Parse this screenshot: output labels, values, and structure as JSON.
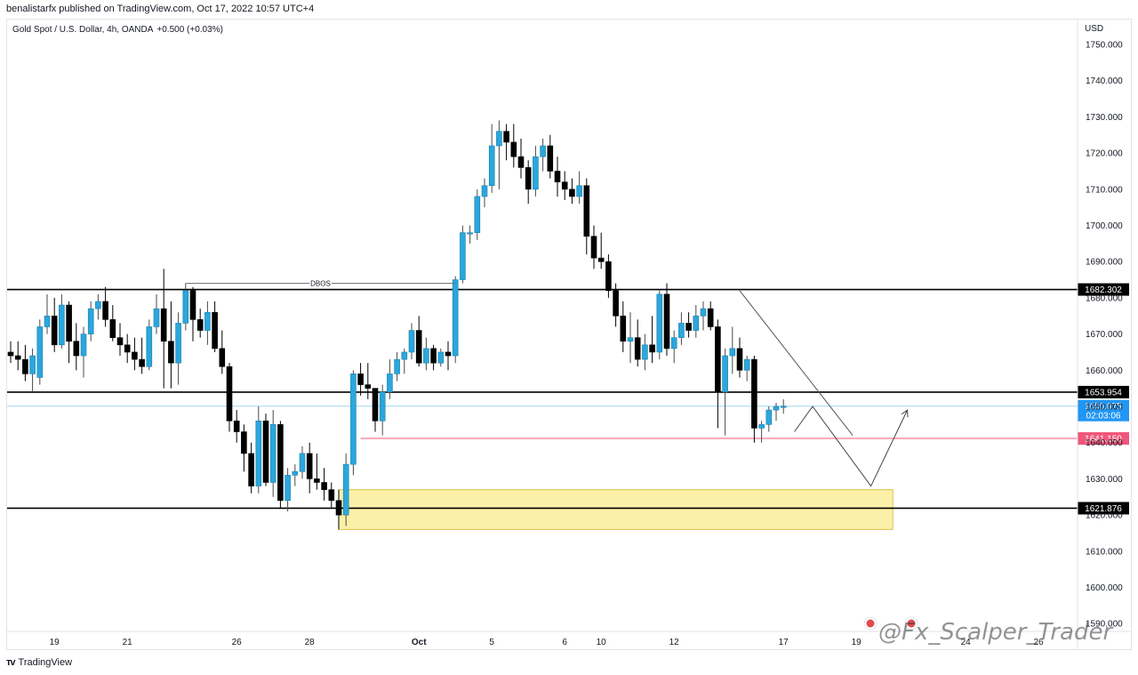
{
  "header": {
    "published_by": "benalistarfx published on TradingView.com, Oct 17, 2022 10:57 UTC+4"
  },
  "footer": {
    "brand": "TradingView",
    "logo_icon": "tradingview-logo-icon"
  },
  "watermark": "@Fx_Scalper_Trader",
  "colors": {
    "bull": "#2aa7dd",
    "bear": "#000000",
    "level_line": "#000000",
    "support_red": "#f0567a",
    "zone_fill": "#fcf0a8",
    "zone_border": "#d9c24a",
    "current_price_bg": "#2196f3",
    "current_line": "#9fd8f5"
  },
  "chart_data": {
    "type": "candlestick",
    "title": "Gold Spot / U.S. Dollar, 4h, OANDA",
    "change": "+0.500 (+0.03%)",
    "currency": "USD",
    "ylim": [
      1590,
      1755
    ],
    "y_ticks": [
      "1750.000",
      "1740.000",
      "1730.000",
      "1720.000",
      "1710.000",
      "1700.000",
      "1690.000",
      "1680.000",
      "1670.000",
      "1660.000",
      "1650.000",
      "1640.000",
      "1630.000",
      "1620.000",
      "1610.000",
      "1600.000",
      "1590.000"
    ],
    "x_ticks": [
      {
        "label": "19",
        "i": 6
      },
      {
        "label": "21",
        "i": 16
      },
      {
        "label": "26",
        "i": 31
      },
      {
        "label": "28",
        "i": 41
      },
      {
        "label": "Oct",
        "i": 56,
        "bold": true
      },
      {
        "label": "5",
        "i": 66
      },
      {
        "label": "6",
        "i": 76
      },
      {
        "label": "10",
        "i": 81
      },
      {
        "label": "12",
        "i": 91
      },
      {
        "label": "17",
        "i": 106
      },
      {
        "label": "19",
        "i": 116
      },
      {
        "label": "24",
        "i": 131
      },
      {
        "label": "26",
        "i": 141
      }
    ],
    "candles": [
      [
        1665,
        1668,
        1662,
        1664
      ],
      [
        1664,
        1668,
        1660,
        1663
      ],
      [
        1663,
        1667,
        1657,
        1659
      ],
      [
        1659,
        1666,
        1654,
        1664
      ],
      [
        1658,
        1674,
        1656,
        1672
      ],
      [
        1672,
        1681,
        1670,
        1675
      ],
      [
        1675,
        1680,
        1665,
        1667
      ],
      [
        1667,
        1681,
        1666,
        1678
      ],
      [
        1678,
        1679,
        1662,
        1668
      ],
      [
        1668,
        1673,
        1660,
        1664
      ],
      [
        1664,
        1672,
        1658,
        1670
      ],
      [
        1670,
        1679,
        1668,
        1677
      ],
      [
        1677,
        1681,
        1674,
        1679
      ],
      [
        1679,
        1683,
        1672,
        1674
      ],
      [
        1674,
        1678,
        1668,
        1669
      ],
      [
        1669,
        1673,
        1664,
        1667
      ],
      [
        1667,
        1670,
        1662,
        1665
      ],
      [
        1665,
        1669,
        1660,
        1663
      ],
      [
        1663,
        1669,
        1659,
        1661
      ],
      [
        1661,
        1674,
        1660,
        1672
      ],
      [
        1672,
        1681,
        1670,
        1677
      ],
      [
        1677,
        1688,
        1655,
        1668
      ],
      [
        1668,
        1679,
        1655,
        1662
      ],
      [
        1662,
        1676,
        1656,
        1673
      ],
      [
        1673,
        1684,
        1671,
        1682
      ],
      [
        1682,
        1683,
        1668,
        1674
      ],
      [
        1674,
        1677,
        1669,
        1671
      ],
      [
        1671,
        1679,
        1667,
        1676
      ],
      [
        1676,
        1679,
        1665,
        1666
      ],
      [
        1666,
        1671,
        1659,
        1661
      ],
      [
        1661,
        1662,
        1643,
        1646
      ],
      [
        1646,
        1649,
        1640,
        1643
      ],
      [
        1643,
        1645,
        1632,
        1637
      ],
      [
        1637,
        1640,
        1626,
        1628
      ],
      [
        1628,
        1650,
        1626,
        1646
      ],
      [
        1646,
        1648,
        1628,
        1629
      ],
      [
        1629,
        1649,
        1625,
        1645
      ],
      [
        1645,
        1646,
        1622,
        1624
      ],
      [
        1624,
        1633,
        1621,
        1631
      ],
      [
        1631,
        1634,
        1628,
        1632
      ],
      [
        1632,
        1639,
        1630,
        1637
      ],
      [
        1637,
        1640,
        1626,
        1630
      ],
      [
        1630,
        1637,
        1627,
        1629
      ],
      [
        1629,
        1633,
        1624,
        1627
      ],
      [
        1627,
        1629,
        1622,
        1624
      ],
      [
        1624,
        1627,
        1616,
        1620
      ],
      [
        1620,
        1637,
        1617,
        1634
      ],
      [
        1634,
        1660,
        1631,
        1659
      ],
      [
        1659,
        1662,
        1653,
        1656
      ],
      [
        1656,
        1662,
        1652,
        1655
      ],
      [
        1655,
        1654,
        1643,
        1646
      ],
      [
        1646,
        1656,
        1642,
        1654
      ],
      [
        1654,
        1663,
        1652,
        1659
      ],
      [
        1659,
        1665,
        1657,
        1663
      ],
      [
        1663,
        1666,
        1659,
        1665
      ],
      [
        1665,
        1673,
        1663,
        1671
      ],
      [
        1671,
        1675,
        1661,
        1662
      ],
      [
        1662,
        1669,
        1660,
        1666
      ],
      [
        1666,
        1667,
        1660,
        1662
      ],
      [
        1662,
        1666,
        1661,
        1665
      ],
      [
        1665,
        1668,
        1660,
        1664
      ],
      [
        1664,
        1686,
        1662,
        1685
      ],
      [
        1685,
        1700,
        1684,
        1698
      ],
      [
        1698,
        1700,
        1695,
        1698
      ],
      [
        1698,
        1710,
        1696,
        1708
      ],
      [
        1708,
        1713,
        1705,
        1711
      ],
      [
        1711,
        1728,
        1709,
        1722
      ],
      [
        1722,
        1729,
        1710,
        1726
      ],
      [
        1726,
        1728,
        1718,
        1723
      ],
      [
        1723,
        1728,
        1716,
        1719
      ],
      [
        1719,
        1724,
        1713,
        1716
      ],
      [
        1716,
        1718,
        1706,
        1710
      ],
      [
        1710,
        1722,
        1708,
        1719
      ],
      [
        1719,
        1724,
        1715,
        1722
      ],
      [
        1722,
        1725,
        1713,
        1715
      ],
      [
        1715,
        1719,
        1708,
        1712
      ],
      [
        1712,
        1715,
        1707,
        1710
      ],
      [
        1710,
        1713,
        1706,
        1708
      ],
      [
        1708,
        1715,
        1706,
        1711
      ],
      [
        1711,
        1713,
        1692,
        1697
      ],
      [
        1697,
        1700,
        1688,
        1691
      ],
      [
        1691,
        1698,
        1688,
        1690
      ],
      [
        1690,
        1692,
        1680,
        1682
      ],
      [
        1682,
        1684,
        1672,
        1675
      ],
      [
        1675,
        1679,
        1665,
        1668
      ],
      [
        1668,
        1676,
        1662,
        1669
      ],
      [
        1669,
        1674,
        1661,
        1663
      ],
      [
        1663,
        1670,
        1660,
        1667
      ],
      [
        1667,
        1675,
        1662,
        1665
      ],
      [
        1665,
        1682,
        1663,
        1681
      ],
      [
        1681,
        1684,
        1664,
        1666
      ],
      [
        1666,
        1671,
        1662,
        1669
      ],
      [
        1669,
        1676,
        1667,
        1673
      ],
      [
        1673,
        1676,
        1669,
        1671
      ],
      [
        1671,
        1678,
        1669,
        1675
      ],
      [
        1675,
        1679,
        1671,
        1677
      ],
      [
        1677,
        1679,
        1671,
        1672
      ],
      [
        1672,
        1674,
        1644,
        1654
      ],
      [
        1654,
        1666,
        1642,
        1664
      ],
      [
        1664,
        1672,
        1659,
        1666
      ],
      [
        1666,
        1669,
        1658,
        1660
      ],
      [
        1660,
        1664,
        1657,
        1663
      ],
      [
        1663,
        1664,
        1640,
        1644
      ],
      [
        1644,
        1646,
        1640,
        1645
      ],
      [
        1645,
        1650,
        1643,
        1649
      ],
      [
        1649,
        1651,
        1646,
        1650
      ],
      [
        1650,
        1652,
        1648,
        1650.075
      ]
    ],
    "levels": [
      {
        "label": "1682.302",
        "value": 1682.302,
        "color": "#000000"
      },
      {
        "label": "1653.954",
        "value": 1653.954,
        "color": "#000000"
      },
      {
        "label": "1641.150",
        "value": 1641.15,
        "color": "#f0567a"
      },
      {
        "label": "1621.876",
        "value": 1621.876,
        "color": "#000000"
      }
    ],
    "current_price": {
      "label": "1650.075",
      "countdown": "02:03:06",
      "value": 1650.075
    },
    "annotations": [
      {
        "text": "DBOS",
        "from_i": 24,
        "to_i": 61,
        "value": 1684
      }
    ],
    "zone": {
      "from_i": 45,
      "to_i": 121,
      "top": 1627,
      "bottom": 1616
    },
    "projection": [
      [
        107.5,
        1643
      ],
      [
        110,
        1650
      ],
      [
        118,
        1628
      ],
      [
        123,
        1649
      ]
    ],
    "trendline": [
      [
        100,
        1682
      ],
      [
        115.5,
        1642
      ]
    ]
  }
}
